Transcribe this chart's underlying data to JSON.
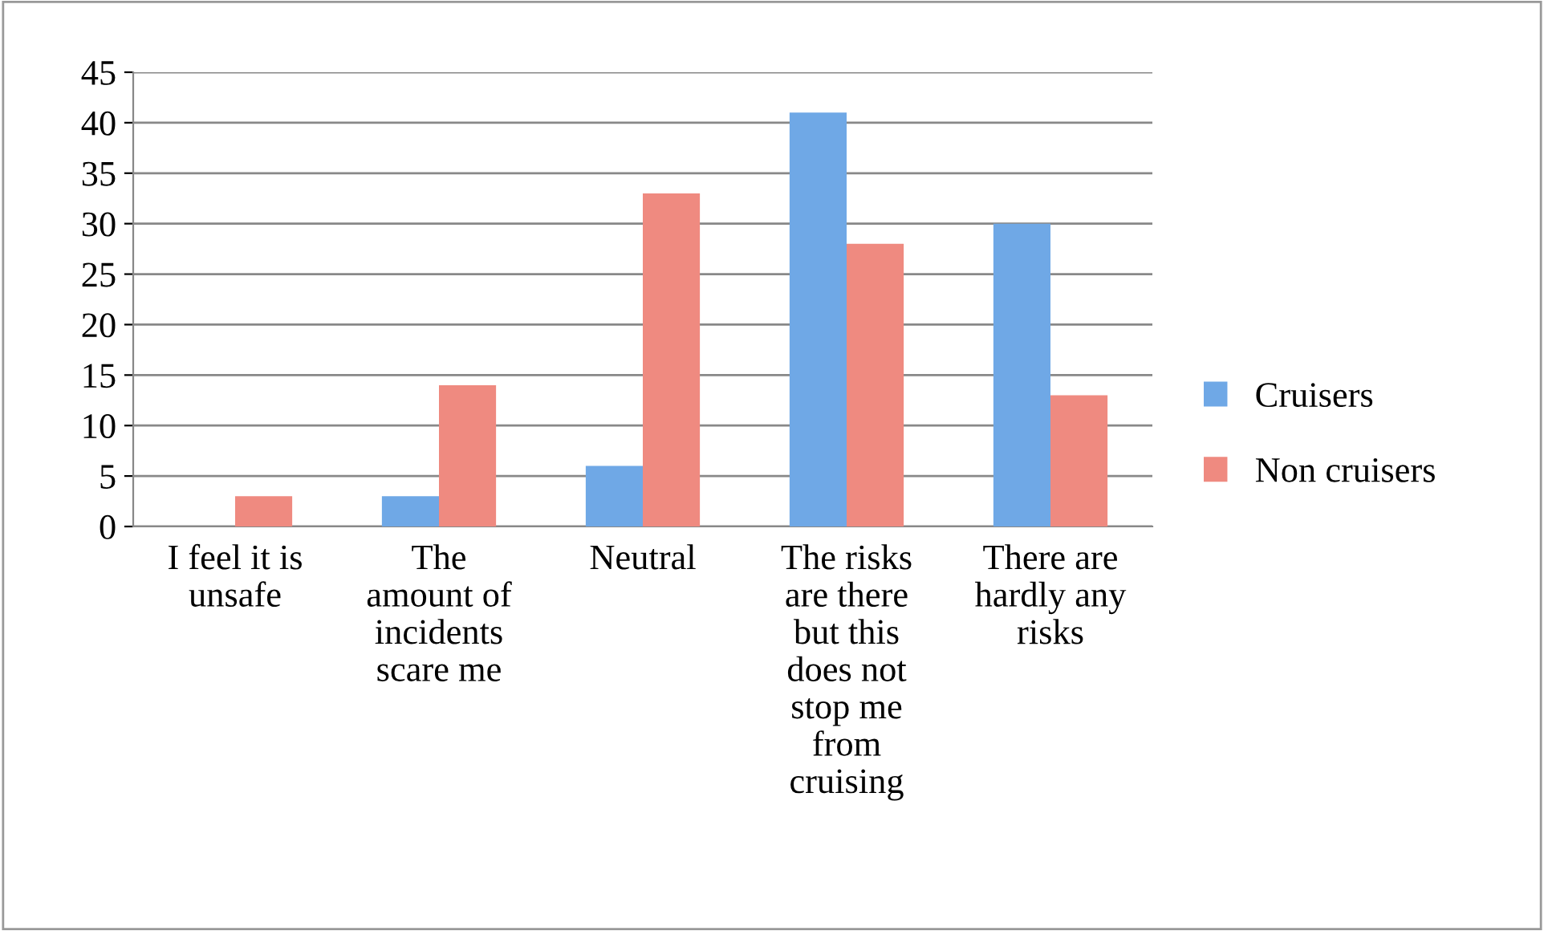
{
  "chart_data": {
    "type": "bar",
    "categories": [
      "I feel it is\nunsafe",
      "The\namount of\nincidents\nscare me",
      "Neutral",
      "The risks\nare there\nbut this\ndoes not\nstop me\nfrom\ncruising",
      "There are\nhardly any\nrisks"
    ],
    "series": [
      {
        "name": "Cruisers",
        "color": "#6fa8e6",
        "values": [
          0,
          3,
          6,
          41,
          30
        ]
      },
      {
        "name": "Non cruisers",
        "color": "#ef8a80",
        "values": [
          3,
          14,
          33,
          28,
          13
        ]
      }
    ],
    "ylim": [
      0,
      45
    ],
    "yticks": [
      0,
      5,
      10,
      15,
      20,
      25,
      30,
      35,
      40,
      45
    ],
    "grid": "y",
    "legend": "right"
  }
}
